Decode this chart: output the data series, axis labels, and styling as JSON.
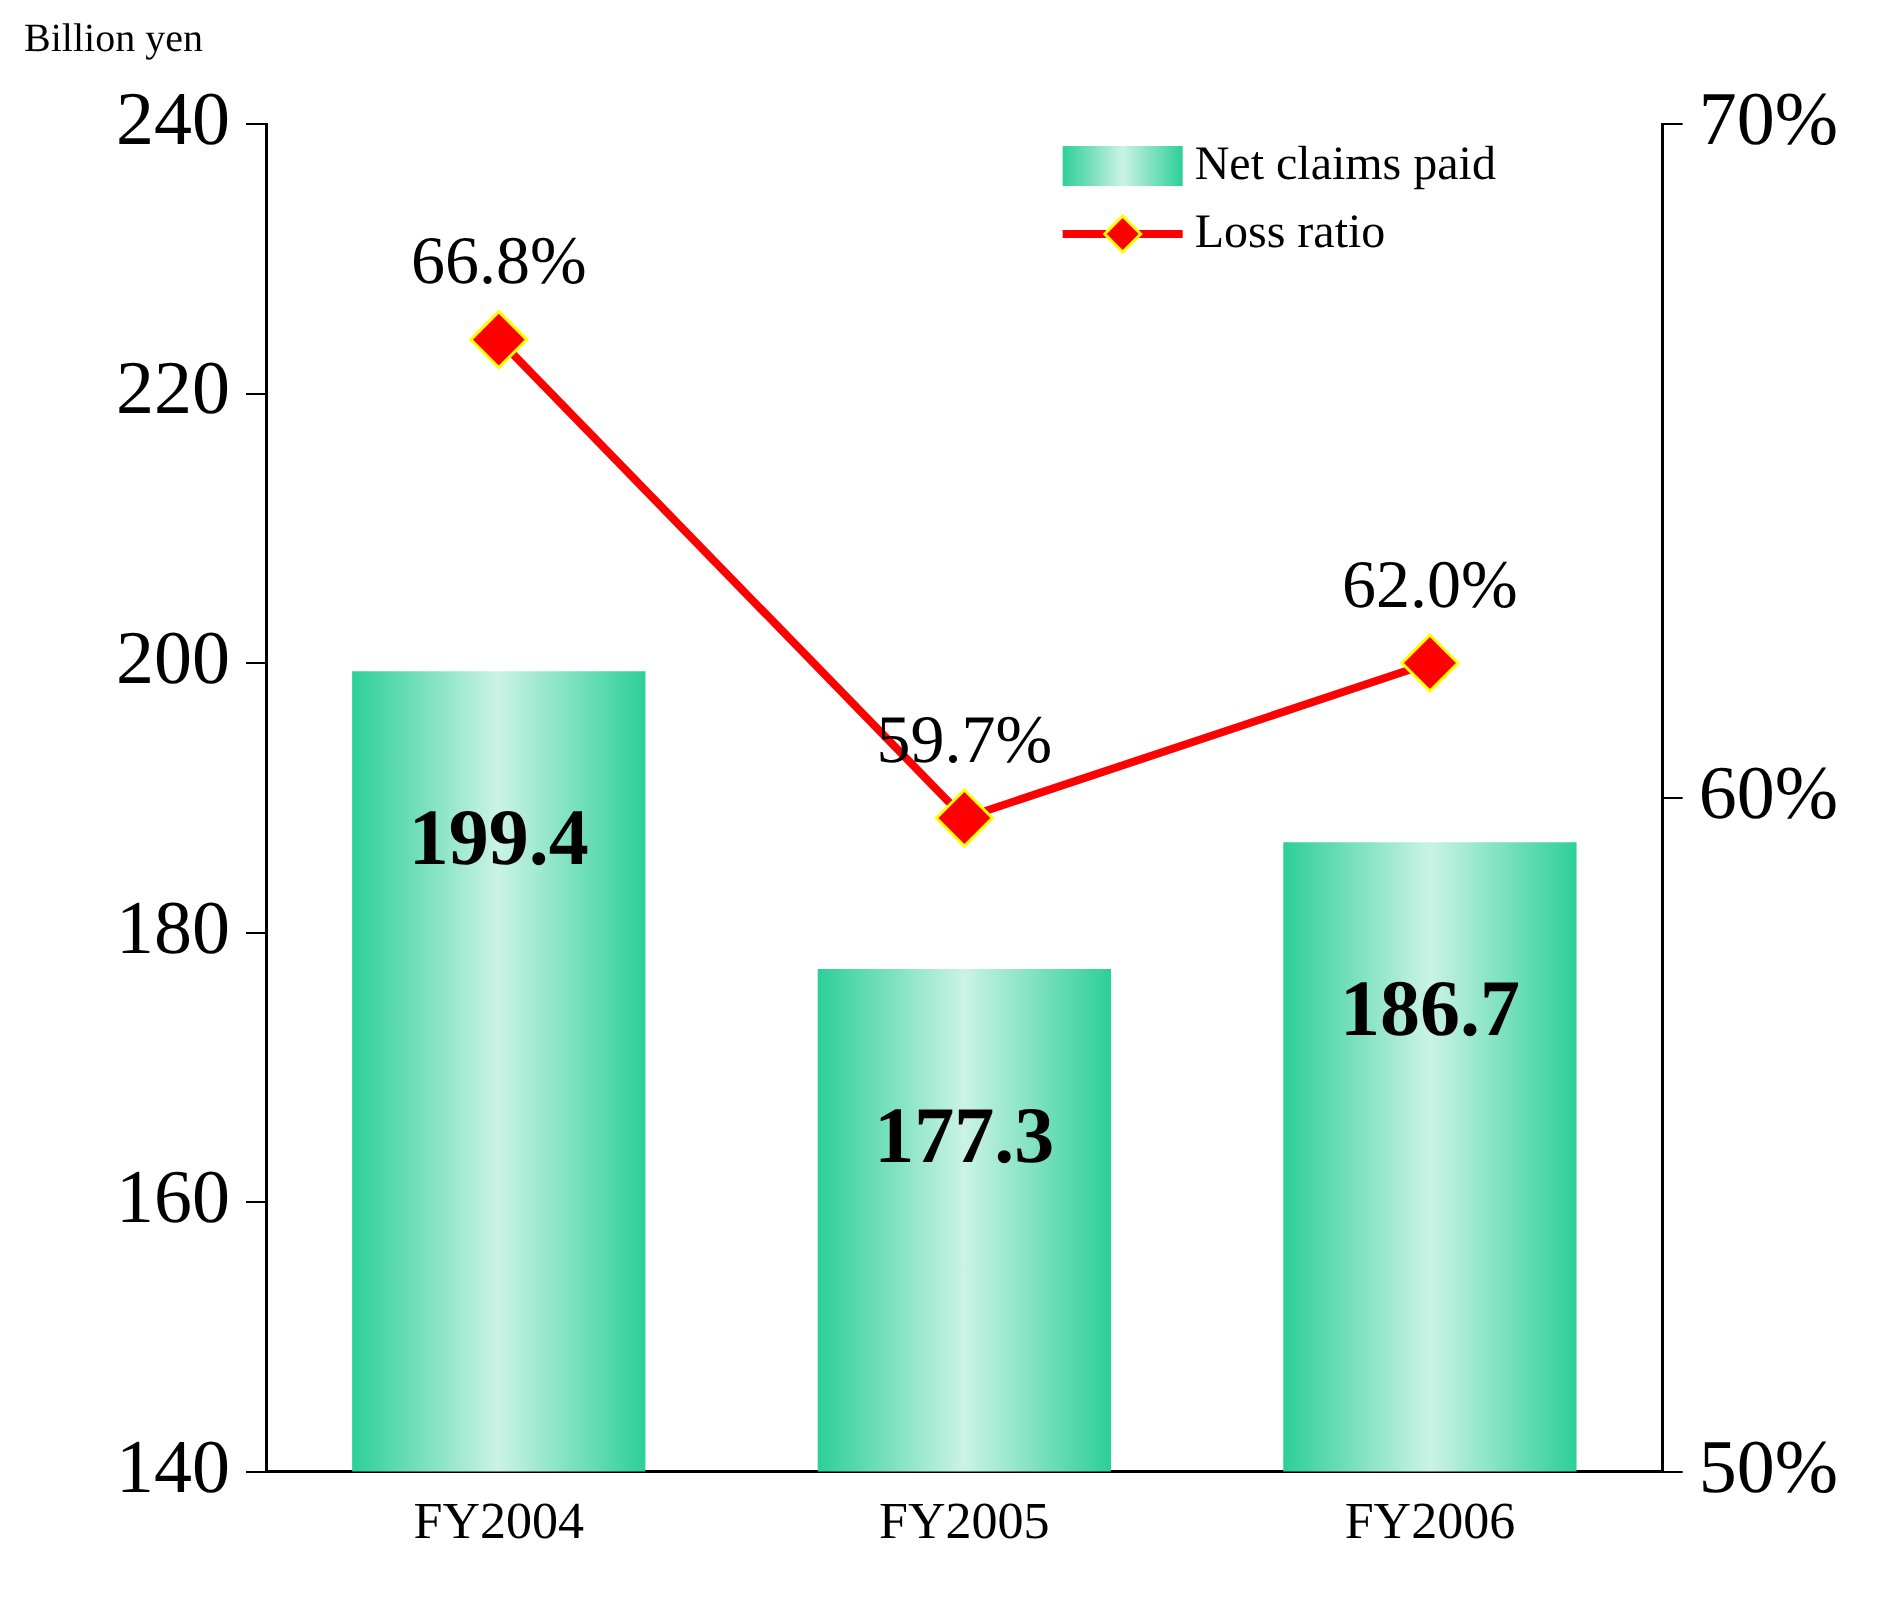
{
  "chart_data": {
    "type": "bar",
    "ylabel": "Billion yen",
    "categories": [
      "FY2004",
      "FY2005",
      "FY2006"
    ],
    "series": [
      {
        "name": "Net claims paid",
        "color": "#2dcf98",
        "values": [
          199.4,
          177.3,
          186.7
        ]
      },
      {
        "name": "Loss ratio",
        "type": "line",
        "axis": "y2",
        "color": "#ff0000",
        "values": [
          66.8,
          59.7,
          62.0
        ],
        "value_labels": [
          "66.8%",
          "59.7%",
          "62.0%"
        ]
      }
    ],
    "ylim": [
      140,
      240
    ],
    "yticks": [
      140,
      160,
      180,
      200,
      220,
      240
    ],
    "y2lim": [
      50,
      70
    ],
    "y2ticks": [
      {
        "value": 50,
        "label": "50%"
      },
      {
        "value": 60,
        "label": "60%"
      },
      {
        "value": 70,
        "label": "70%"
      }
    ],
    "data_labels": true,
    "grid": false,
    "legend": "top right",
    "marker": "diamond",
    "line_style": "solid"
  }
}
